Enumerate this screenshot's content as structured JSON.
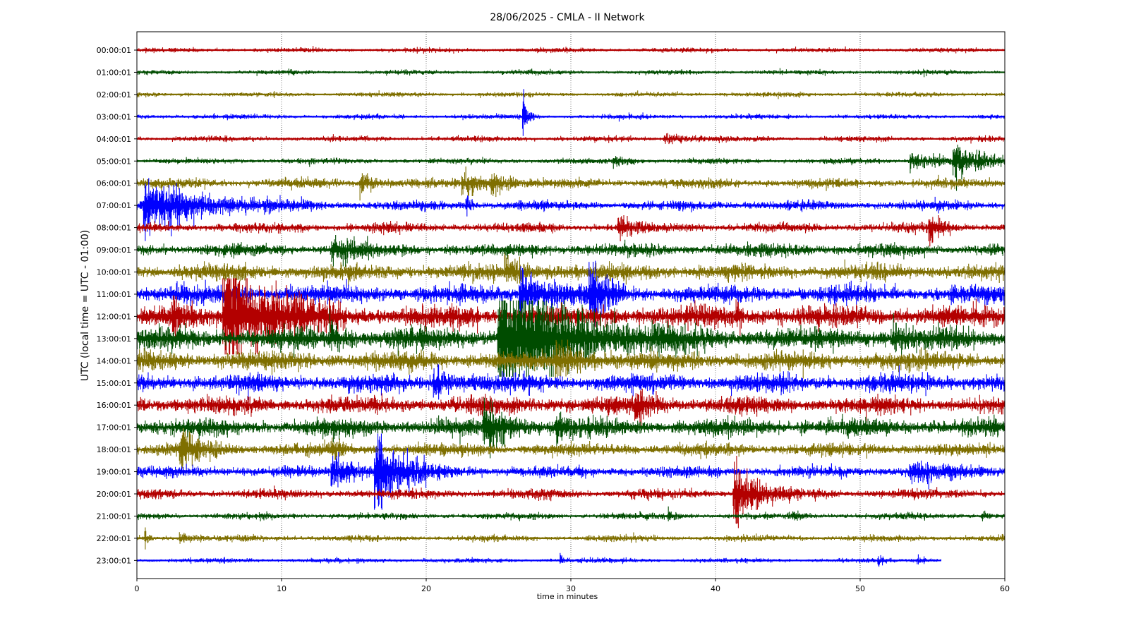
{
  "chart_data": {
    "type": "line",
    "title": "28/06/2025 - CMLA - II Network",
    "xlabel": "time in minutes",
    "ylabel": "UTC (local time = UTC - 01:00)",
    "xlim": [
      0,
      60
    ],
    "xticks": [
      0,
      10,
      20,
      30,
      40,
      50,
      60
    ],
    "grid": "vertical dotted lines at x ticks",
    "legend": "none",
    "color_cycle": [
      "#b30000",
      "#004c00",
      "#7f6f00",
      "#0000ff"
    ],
    "rows": [
      {
        "label": "00:00:01",
        "noise": 0.15,
        "end_minute": 60,
        "events": []
      },
      {
        "label": "01:00:01",
        "noise": 0.15,
        "end_minute": 60,
        "events": []
      },
      {
        "label": "02:00:01",
        "noise": 0.15,
        "end_minute": 60,
        "events": []
      },
      {
        "label": "03:00:01",
        "noise": 0.15,
        "end_minute": 60,
        "events": [
          {
            "t": 26.7,
            "amp": 1.3,
            "dur": 0.6
          }
        ]
      },
      {
        "label": "04:00:01",
        "noise": 0.18,
        "end_minute": 60,
        "events": [
          {
            "t": 36.5,
            "amp": 0.3,
            "dur": 2.5
          }
        ]
      },
      {
        "label": "05:00:01",
        "noise": 0.18,
        "end_minute": 60,
        "events": [
          {
            "t": 33,
            "amp": 0.3,
            "dur": 2
          },
          {
            "t": 53.5,
            "amp": 0.5,
            "dur": 4
          },
          {
            "t": 56.5,
            "amp": 0.9,
            "dur": 3.5
          }
        ]
      },
      {
        "label": "06:00:01",
        "noise": 0.3,
        "end_minute": 60,
        "events": [
          {
            "t": 15.5,
            "amp": 0.6,
            "dur": 2
          },
          {
            "t": 22.5,
            "amp": 0.6,
            "dur": 3
          },
          {
            "t": 24.5,
            "amp": 0.6,
            "dur": 2
          }
        ]
      },
      {
        "label": "07:00:01",
        "noise": 0.3,
        "end_minute": 60,
        "events": [
          {
            "t": 0.5,
            "amp": 1.4,
            "dur": 9
          },
          {
            "t": 22.8,
            "amp": 1.0,
            "dur": 0.4
          }
        ]
      },
      {
        "label": "08:00:01",
        "noise": 0.3,
        "end_minute": 60,
        "events": [
          {
            "t": 33.3,
            "amp": 0.9,
            "dur": 1.5
          },
          {
            "t": 54.8,
            "amp": 0.9,
            "dur": 1.5
          }
        ]
      },
      {
        "label": "09:00:01",
        "noise": 0.4,
        "end_minute": 60,
        "events": [
          {
            "t": 13.5,
            "amp": 0.7,
            "dur": 3
          }
        ]
      },
      {
        "label": "10:00:01",
        "noise": 0.5,
        "end_minute": 60,
        "events": [
          {
            "t": 25.5,
            "amp": 0.6,
            "dur": 4
          }
        ]
      },
      {
        "label": "11:00:01",
        "noise": 0.6,
        "end_minute": 60,
        "events": [
          {
            "t": 26.5,
            "amp": 1.2,
            "dur": 4
          },
          {
            "t": 31.3,
            "amp": 1.8,
            "dur": 2
          }
        ]
      },
      {
        "label": "12:00:01",
        "noise": 0.7,
        "end_minute": 60,
        "events": [
          {
            "t": 2.5,
            "amp": 1.0,
            "dur": 1
          },
          {
            "t": 6.0,
            "amp": 3.8,
            "dur": 6.5
          },
          {
            "t": 41.5,
            "amp": 0.8,
            "dur": 0.6
          }
        ]
      },
      {
        "label": "13:00:01",
        "noise": 0.7,
        "end_minute": 60,
        "events": [
          {
            "t": 13.4,
            "amp": 0.9,
            "dur": 1.5
          },
          {
            "t": 25.0,
            "amp": 3.6,
            "dur": 10
          },
          {
            "t": 52.3,
            "amp": 0.7,
            "dur": 1.5
          }
        ]
      },
      {
        "label": "14:00:01",
        "noise": 0.6,
        "end_minute": 60,
        "events": [
          {
            "t": 29.0,
            "amp": 0.8,
            "dur": 4
          }
        ]
      },
      {
        "label": "15:00:01",
        "noise": 0.6,
        "end_minute": 60,
        "events": [
          {
            "t": 20.5,
            "amp": 0.8,
            "dur": 2
          }
        ]
      },
      {
        "label": "16:00:01",
        "noise": 0.55,
        "end_minute": 60,
        "events": [
          {
            "t": 34.5,
            "amp": 0.9,
            "dur": 2
          }
        ]
      },
      {
        "label": "17:00:01",
        "noise": 0.55,
        "end_minute": 60,
        "events": [
          {
            "t": 24.0,
            "amp": 1.6,
            "dur": 3
          },
          {
            "t": 29.0,
            "amp": 0.8,
            "dur": 2
          }
        ]
      },
      {
        "label": "18:00:01",
        "noise": 0.4,
        "end_minute": 60,
        "events": [
          {
            "t": 3.0,
            "amp": 0.9,
            "dur": 3
          },
          {
            "t": 13.5,
            "amp": 0.7,
            "dur": 0.8
          }
        ]
      },
      {
        "label": "19:00:01",
        "noise": 0.35,
        "end_minute": 60,
        "events": [
          {
            "t": 13.5,
            "amp": 1.0,
            "dur": 3
          },
          {
            "t": 16.5,
            "amp": 2.2,
            "dur": 4
          },
          {
            "t": 53.5,
            "amp": 0.5,
            "dur": 5
          }
        ]
      },
      {
        "label": "20:00:01",
        "noise": 0.3,
        "end_minute": 60,
        "events": [
          {
            "t": 41.3,
            "amp": 1.7,
            "dur": 3.5
          }
        ]
      },
      {
        "label": "21:00:01",
        "noise": 0.2,
        "end_minute": 60,
        "events": [
          {
            "t": 36.8,
            "amp": 0.3,
            "dur": 0.8
          },
          {
            "t": 45.4,
            "amp": 0.3,
            "dur": 0.8
          },
          {
            "t": 58.5,
            "amp": 0.3,
            "dur": 0.8
          }
        ]
      },
      {
        "label": "22:00:01",
        "noise": 0.2,
        "end_minute": 60,
        "events": [
          {
            "t": 0.6,
            "amp": 0.5,
            "dur": 0.5
          },
          {
            "t": 3.0,
            "amp": 0.3,
            "dur": 1.5
          }
        ]
      },
      {
        "label": "23:00:01",
        "noise": 0.15,
        "end_minute": 55.6,
        "events": [
          {
            "t": 29.3,
            "amp": 0.3,
            "dur": 0.5
          },
          {
            "t": 51.3,
            "amp": 0.3,
            "dur": 0.5
          },
          {
            "t": 54.0,
            "amp": 0.3,
            "dur": 1.0
          }
        ]
      }
    ]
  }
}
